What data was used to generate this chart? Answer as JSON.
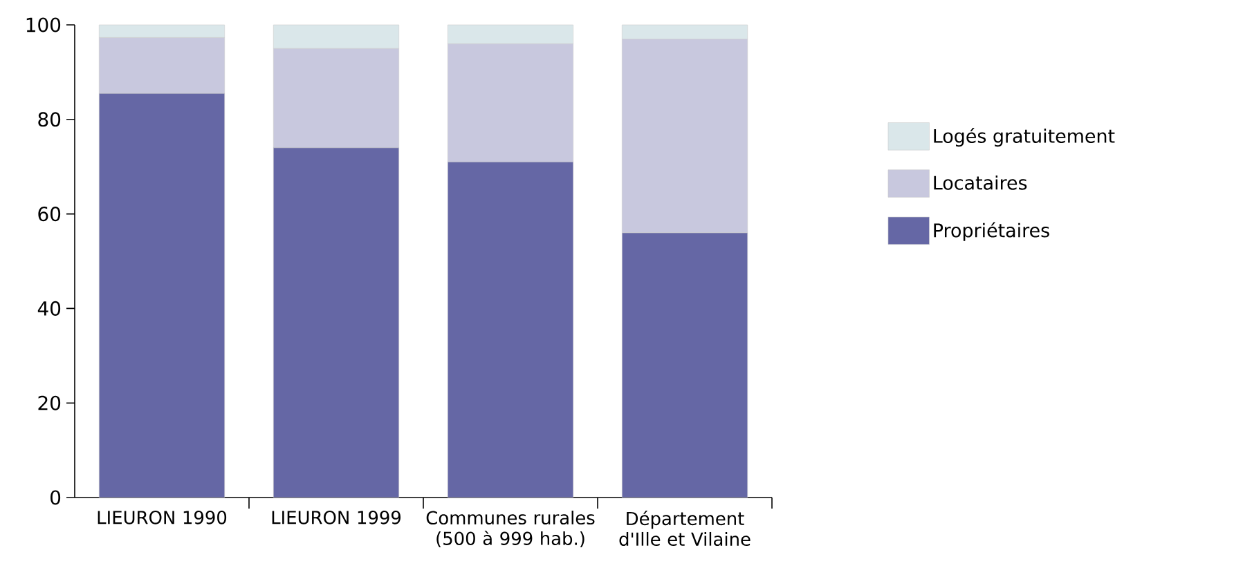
{
  "chart_data": {
    "type": "bar",
    "stacked": true,
    "categories": [
      "LIEURON 1990",
      "LIEURON 1999",
      "Communes rurales (500 à 999 hab.)",
      "Département d'Ille et Vilaine"
    ],
    "series": [
      {
        "name": "Propriétaires",
        "color": "#6567a5",
        "values": [
          85.5,
          74,
          71,
          56
        ]
      },
      {
        "name": "Locataires",
        "color": "#c8c8de",
        "values": [
          11.8,
          21,
          25,
          41
        ]
      },
      {
        "name": "Logés gratuitement",
        "color": "#dae7ea",
        "values": [
          2.7,
          5,
          4,
          3
        ]
      }
    ],
    "ylim": [
      0,
      100
    ],
    "yticks": [
      0,
      20,
      40,
      60,
      80,
      100
    ],
    "legend": "right"
  }
}
